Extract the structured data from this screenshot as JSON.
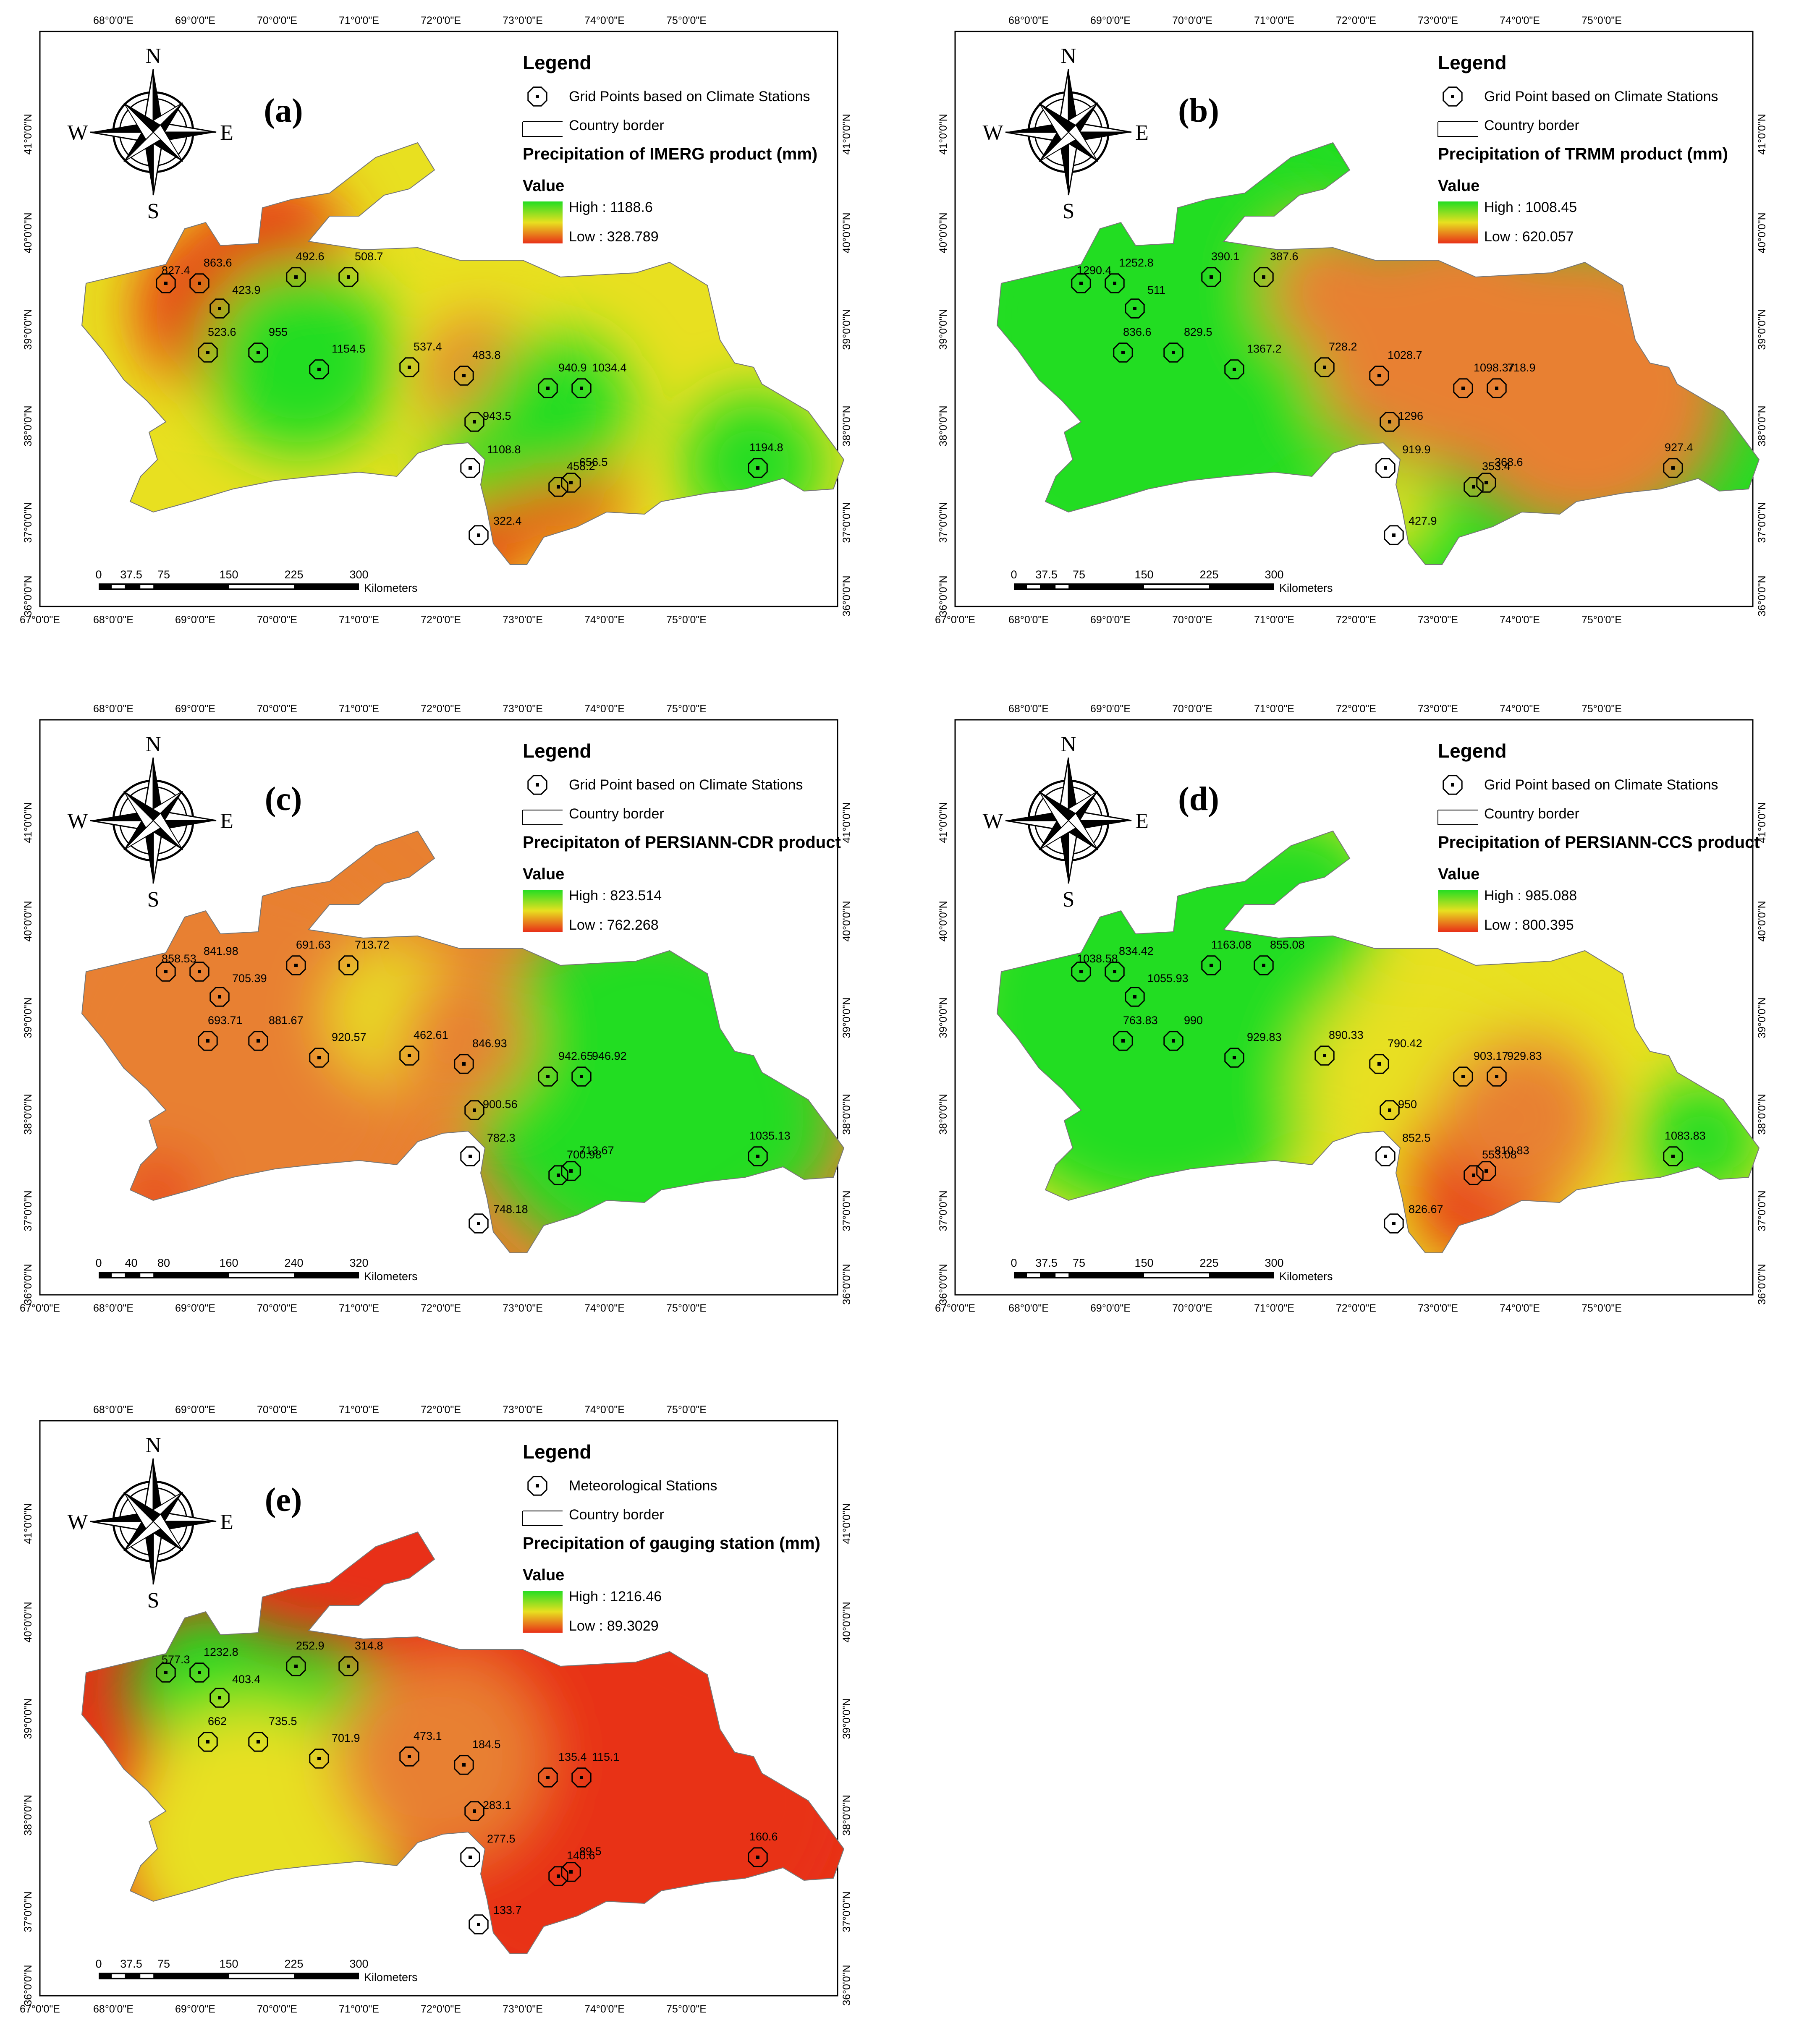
{
  "axes": {
    "top_ticks": [
      "68°0'0\"E",
      "69°0'0\"E",
      "70°0'0\"E",
      "71°0'0\"E",
      "72°0'0\"E",
      "73°0'0\"E",
      "74°0'0\"E",
      "75°0'0\"E"
    ],
    "bottom_ticks": [
      "67°0'0\"E",
      "68°0'0\"E",
      "69°0'0\"E",
      "70°0'0\"E",
      "71°0'0\"E",
      "72°0'0\"E",
      "73°0'0\"E",
      "74°0'0\"E",
      "75°0'0\"E"
    ],
    "lat_ticks": [
      "41°0'0\"N",
      "40°0'0\"N",
      "39°0'0\"N",
      "38°0'0\"N",
      "37°0'0\"N",
      "36°0'0\"N"
    ]
  },
  "compass": {
    "n": "N",
    "s": "S",
    "e": "E",
    "w": "W"
  },
  "legend_common": {
    "title": "Legend",
    "border_label": "Country border",
    "value_label": "Value"
  },
  "colors": {
    "high": "#22dd22",
    "mid": "#e8e020",
    "low": "#e83018",
    "orange": "#e88030"
  },
  "panels": [
    {
      "label": "(a)",
      "station_label": "Grid Points based on Climate Stations",
      "product_title": "Precipitation of IMERG product (mm)",
      "high": "High : 1188.6",
      "low": "Low : 328.789",
      "scale_ticks": [
        "0",
        "37.5",
        "75",
        "150",
        "225",
        "300"
      ],
      "scale_unit": "Kilometers",
      "values": [
        "827.4",
        "863.6",
        "423.9",
        "492.6",
        "508.7",
        "523.6",
        "955",
        "1154.5",
        "537.4",
        "483.8",
        "943.5",
        "940.9",
        "1034.4",
        "1108.8",
        "458.2",
        "656.5",
        "322.4",
        "1194.8"
      ]
    },
    {
      "label": "(b)",
      "station_label": "Grid Point based on Climate Stations",
      "product_title": "Precipitation of TRMM product (mm)",
      "high": "High : 1008.45",
      "low": "Low : 620.057",
      "scale_ticks": [
        "0",
        "37.5",
        "75",
        "150",
        "225",
        "300"
      ],
      "scale_unit": "Kilometers",
      "values": [
        "1290.4",
        "1252.8",
        "511",
        "390.1",
        "387.6",
        "836.6",
        "829.5",
        "1367.2",
        "728.2",
        "1028.7",
        "1296",
        "1098.37",
        "718.9",
        "919.9",
        "353.4",
        "368.6",
        "427.9",
        "927.4"
      ]
    },
    {
      "label": "(c)",
      "station_label": "Grid Point based on Climate Stations",
      "product_title": "Precipitaton of PERSIANN-CDR product",
      "high": "High : 823.514",
      "low": "Low : 762.268",
      "scale_ticks": [
        "0",
        "40",
        "80",
        "160",
        "240",
        "320"
      ],
      "scale_unit": "Kilometers",
      "values": [
        "858.53",
        "841.98",
        "705.39",
        "691.63",
        "713.72",
        "693.71",
        "881.67",
        "920.57",
        "462.61",
        "846.93",
        "900.56",
        "942.65",
        "946.92",
        "782.3",
        "700.98",
        "713.67",
        "748.18",
        "1035.13"
      ]
    },
    {
      "label": "(d)",
      "station_label": "Grid Point based on Climate Stations",
      "product_title": "Precipitation of PERSIANN-CCS product",
      "high": "High : 985.088",
      "low": "Low : 800.395",
      "scale_ticks": [
        "0",
        "37.5",
        "75",
        "150",
        "225",
        "300"
      ],
      "scale_unit": "Kilometers",
      "values": [
        "1038.58",
        "834.42",
        "1055.93",
        "1163.08",
        "855.08",
        "763.83",
        "990",
        "929.83",
        "890.33",
        "790.42",
        "950",
        "903.17",
        "929.83",
        "852.5",
        "553.08",
        "810.83",
        "826.67",
        "1083.83"
      ]
    },
    {
      "label": "(e)",
      "station_label": "Meteorological Stations",
      "product_title": "Precipitation of gauging station (mm)",
      "high": "High : 1216.46",
      "low": "Low : 89.3029",
      "scale_ticks": [
        "0",
        "37.5",
        "75",
        "150",
        "225",
        "300"
      ],
      "scale_unit": "Kilometers",
      "values": [
        "577.3",
        "1232.8",
        "403.4",
        "252.9",
        "314.8",
        "662",
        "735.5",
        "701.9",
        "473.1",
        "184.5",
        "283.1",
        "135.4",
        "115.1",
        "277.5",
        "140.6",
        "89.5",
        "133.7",
        "160.6"
      ]
    }
  ]
}
